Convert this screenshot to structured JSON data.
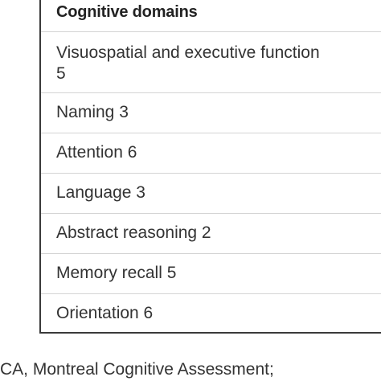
{
  "table": {
    "header": "Cognitive domains",
    "rows": [
      {
        "line1": "Visuospatial and executive function ",
        "line2": "5"
      },
      {
        "label": "Naming 3"
      },
      {
        "label": "Attention 6"
      },
      {
        "label": "Language 3"
      },
      {
        "label": "Abstract reasoning 2"
      },
      {
        "label": "Memory recall 5"
      },
      {
        "label": "Orientation 6"
      }
    ]
  },
  "footnote": "CA, Montreal Cognitive Assessment;"
}
